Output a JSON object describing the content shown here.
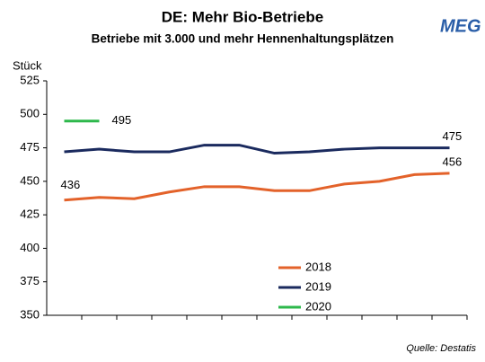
{
  "logo": "MEG",
  "chart_data": {
    "type": "line",
    "title": "DE: Mehr Bio-Betriebe",
    "subtitle": "Betriebe mit 3.000 und mehr Hennenhaltungsplätzen",
    "y_label": "Stück",
    "source": "Quelle: Destatis",
    "categories": [
      null,
      null,
      null,
      null,
      null,
      null,
      null,
      null,
      null,
      null,
      null,
      null
    ],
    "series": [
      {
        "name": "2018",
        "color": "#e3622a",
        "values": [
          436,
          438,
          437,
          442,
          446,
          446,
          443,
          443,
          448,
          450,
          455,
          456
        ]
      },
      {
        "name": "2019",
        "color": "#1a2a5e",
        "values": [
          472,
          474,
          472,
          472,
          477,
          477,
          471,
          472,
          474,
          475,
          475,
          475
        ]
      },
      {
        "name": "2020",
        "color": "#2db84b",
        "values": [
          495,
          495,
          null,
          null,
          null,
          null,
          null,
          null,
          null,
          null,
          null,
          null
        ]
      }
    ],
    "ylim": [
      350,
      525
    ],
    "yticks": [
      350,
      375,
      400,
      425,
      450,
      475,
      500,
      525
    ],
    "grid": false
  }
}
